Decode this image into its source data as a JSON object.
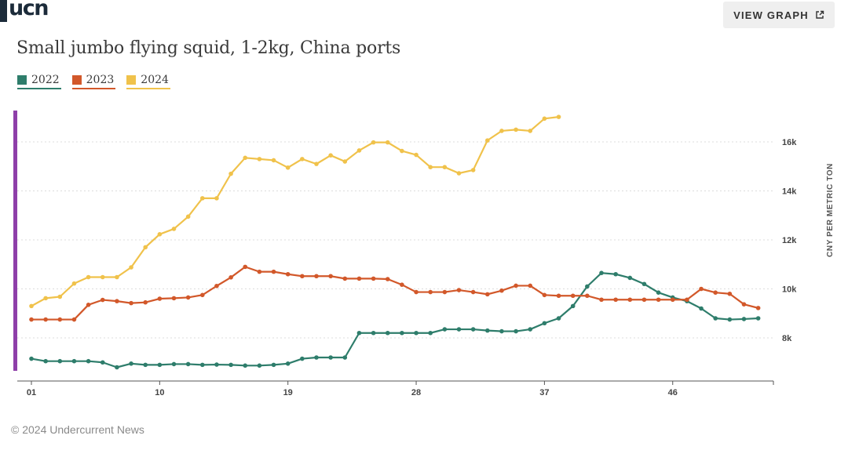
{
  "logo": "ucn",
  "header": {
    "view_graph_label": "VIEW GRAPH",
    "view_graph_icon": "external-link-icon"
  },
  "footer": "© 2024 Undercurrent News",
  "colors": {
    "2022": "#2e7d6b",
    "2023": "#d2582a",
    "2024": "#f0c24b",
    "accent_bar": "#8e3fa9"
  },
  "chart_data": {
    "type": "line",
    "title": "Small jumbo flying squid, 1-2kg, China ports",
    "ylabel": "CNY PER METRIC TON",
    "xlabel": "",
    "x_ticks": [
      "01",
      "10",
      "19",
      "28",
      "37",
      "46"
    ],
    "y_ticks": [
      "8k",
      "10k",
      "12k",
      "14k",
      "16k"
    ],
    "xlim": [
      1,
      53
    ],
    "ylim": [
      6800,
      17200
    ],
    "grid": true,
    "legend_position": "top-left",
    "series": [
      {
        "name": "2022",
        "color": "#2e7d6b",
        "values": [
          7150,
          7050,
          7050,
          7050,
          7050,
          7000,
          6800,
          6950,
          6900,
          6900,
          6930,
          6930,
          6900,
          6910,
          6900,
          6870,
          6870,
          6900,
          6950,
          7150,
          7200,
          7200,
          7200,
          8200,
          8200,
          8200,
          8200,
          8200,
          8200,
          8350,
          8350,
          8350,
          8300,
          8270,
          8270,
          8350,
          8600,
          8800,
          9300,
          10100,
          10650,
          10600,
          10450,
          10200,
          9850,
          9650,
          9500,
          9200,
          8800,
          8750,
          8770,
          8800
        ]
      },
      {
        "name": "2023",
        "color": "#d2582a",
        "values": [
          8750,
          8750,
          8750,
          8750,
          9350,
          9550,
          9500,
          9420,
          9450,
          9600,
          9620,
          9650,
          9750,
          10120,
          10470,
          10900,
          10700,
          10700,
          10600,
          10520,
          10520,
          10520,
          10420,
          10420,
          10420,
          10400,
          10170,
          9870,
          9870,
          9870,
          9950,
          9870,
          9780,
          9930,
          10130,
          10130,
          9750,
          9720,
          9720,
          9720,
          9560,
          9560,
          9560,
          9560,
          9560,
          9560,
          9560,
          10000,
          9850,
          9800,
          9370,
          9220
        ]
      },
      {
        "name": "2024",
        "color": "#f0c24b",
        "values": [
          9300,
          9620,
          9680,
          10220,
          10480,
          10480,
          10480,
          10880,
          11700,
          12230,
          12450,
          12950,
          13700,
          13700,
          14700,
          15350,
          15300,
          15250,
          14950,
          15300,
          15100,
          15450,
          15200,
          15650,
          15980,
          15980,
          15630,
          15470,
          14970,
          14970,
          14720,
          14850,
          16060,
          16450,
          16500,
          16450,
          16950,
          17020
        ]
      }
    ]
  }
}
